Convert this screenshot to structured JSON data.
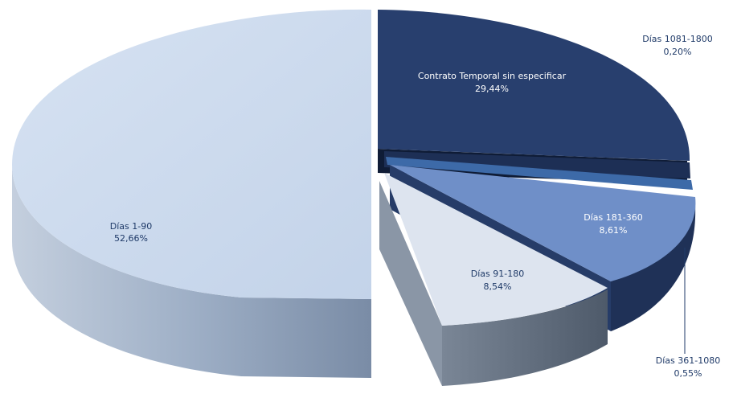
{
  "chart_data": {
    "type": "pie",
    "title": "",
    "style": "3d-exploded",
    "slices": [
      {
        "label": "Días 1-90",
        "value": 52.66,
        "display": "52,66%",
        "color": "#c5d5ea"
      },
      {
        "label": "Contrato Temporal sin especificar",
        "value": 29.44,
        "display": "29,44%",
        "color": "#24396a"
      },
      {
        "label": "Días 1081-1800",
        "value": 0.2,
        "display": "0,20%",
        "color": "#1d2f55"
      },
      {
        "label": "Días 361-1080",
        "value": 0.55,
        "display": "0,55%",
        "color": "#3d6aa8"
      },
      {
        "label": "Días 181-360",
        "value": 8.61,
        "display": "8,61%",
        "color": "#6f8fc8"
      },
      {
        "label": "Días 91-180",
        "value": 8.54,
        "display": "8,54%",
        "color": "#dde4ef"
      }
    ],
    "colors": {
      "side_light": "#93a6c1",
      "side_dark": "#1e3157",
      "side_gray": "#5d6a7a",
      "side_blue": "#34538a",
      "leader_line": "#1f3a68"
    }
  }
}
